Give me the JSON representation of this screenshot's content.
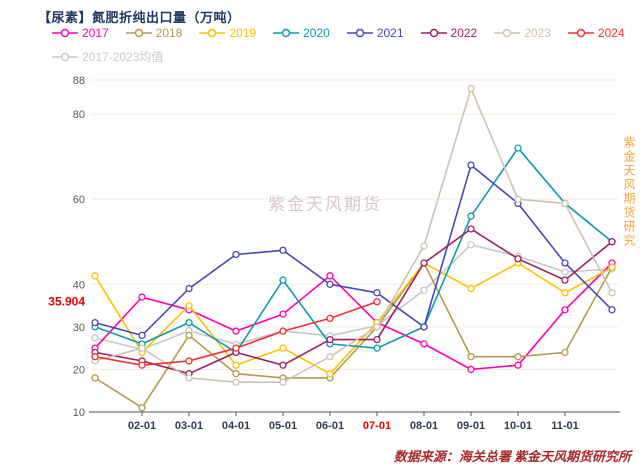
{
  "title": "【尿素】氮肥折纯出口量（万吨）",
  "watermark_center": "紫金天风期货",
  "watermark_right": "紫金天风期货研究",
  "source": "数据来源：海关总署 紫金天风期货研究所",
  "annotation": {
    "text": "35.904",
    "value": 35.904,
    "color": "#E60000"
  },
  "axis": {
    "y_min": 10,
    "y_max": 88,
    "y_ticks": [
      88,
      80,
      60,
      40,
      30,
      20,
      10
    ],
    "x_labels": [
      "02-01",
      "03-01",
      "04-01",
      "05-01",
      "06-01",
      "07-01",
      "08-01",
      "09-01",
      "10-01",
      "11-01"
    ],
    "x_label_months": [
      2,
      3,
      4,
      5,
      6,
      7,
      8,
      9,
      10,
      11
    ],
    "highlight_x_label": "07-01",
    "highlight_color": "#E60000"
  },
  "chart_data": {
    "type": "line",
    "title": "【尿素】氮肥折纯出口量（万吨）",
    "xlabel": "",
    "ylabel": "万吨",
    "ylim": [
      10,
      88
    ],
    "grid": false,
    "legend_position": "top",
    "x_months": [
      1,
      2,
      3,
      4,
      5,
      6,
      7,
      8,
      9,
      10,
      11,
      12
    ],
    "series": [
      {
        "name": "2017-2023均值",
        "color": "#c8c8c8",
        "legend_row": 2,
        "values": [
          27.4,
          24.7,
          29.1,
          25.9,
          29.0,
          27.9,
          30.3,
          38.6,
          49.3,
          46.6,
          42.9,
          43.6
        ]
      },
      {
        "name": "2017",
        "color": "#ff00b4",
        "legend_row": 1,
        "values": [
          25,
          37,
          34,
          29,
          33,
          42,
          31,
          26,
          20,
          21,
          34,
          45
        ]
      },
      {
        "name": "2018",
        "color": "#b49a4b",
        "legend_row": 1,
        "values": [
          18,
          11,
          28,
          19,
          18,
          18,
          30,
          45,
          23,
          23,
          24,
          44
        ]
      },
      {
        "name": "2019",
        "color": "#ffc000",
        "legend_row": 1,
        "values": [
          42,
          24,
          35,
          21,
          25,
          19,
          31,
          45,
          39,
          45,
          38,
          44
        ]
      },
      {
        "name": "2020",
        "color": "#0a9bae",
        "legend_row": 1,
        "values": [
          30,
          26,
          31,
          24,
          41,
          26,
          25,
          30,
          56,
          72,
          59,
          50
        ]
      },
      {
        "name": "2021",
        "color": "#4a47b4",
        "legend_row": 1,
        "values": [
          31,
          28,
          39,
          47,
          48,
          40,
          38,
          30,
          68,
          59,
          45,
          34
        ]
      },
      {
        "name": "2022",
        "color": "#9c1f63",
        "legend_row": 1,
        "values": [
          24,
          22,
          19,
          24,
          21,
          27,
          27,
          45,
          53,
          46,
          41,
          50
        ]
      },
      {
        "name": "2023",
        "color": "#cdc3b0",
        "legend_row": 1,
        "values": [
          22,
          25,
          18,
          17,
          17,
          23,
          30,
          49,
          86,
          60,
          59,
          38
        ]
      },
      {
        "name": "2024",
        "color": "#f03232",
        "legend_row": 1,
        "values": [
          23,
          21,
          22,
          25,
          29,
          32,
          35.904,
          null,
          null,
          null,
          null,
          null
        ]
      }
    ]
  }
}
